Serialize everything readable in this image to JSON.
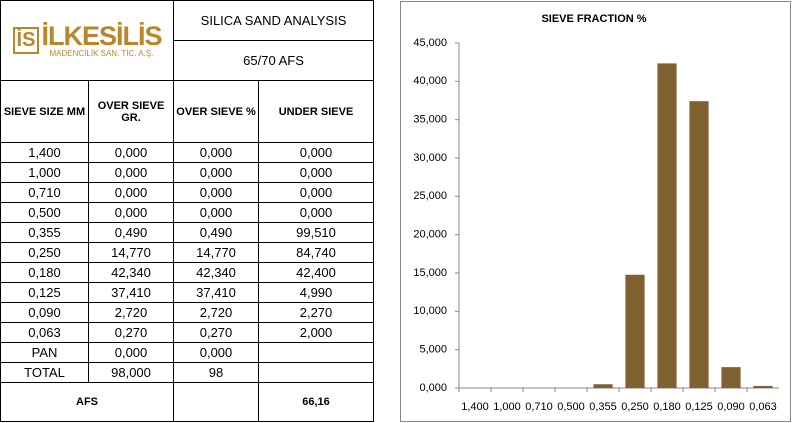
{
  "logo": {
    "icon": "İS",
    "name": "İLKESİLİS",
    "tagline": "MADENCİLİK SAN. TİC. A.Ş."
  },
  "table": {
    "title": "SILICA SAND ANALYSIS",
    "subtitle": "65/70 AFS",
    "header": [
      "SIEVE SIZE MM",
      "OVER SIEVE GR.",
      "OVER SIEVE %",
      "UNDER SIEVE"
    ],
    "rows": [
      [
        "1,400",
        "0,000",
        "0,000",
        "0,000"
      ],
      [
        "1,000",
        "0,000",
        "0,000",
        "0,000"
      ],
      [
        "0,710",
        "0,000",
        "0,000",
        "0,000"
      ],
      [
        "0,500",
        "0,000",
        "0,000",
        "0,000"
      ],
      [
        "0,355",
        "0,490",
        "0,490",
        "99,510"
      ],
      [
        "0,250",
        "14,770",
        "14,770",
        "84,740"
      ],
      [
        "0,180",
        "42,340",
        "42,340",
        "42,400"
      ],
      [
        "0,125",
        "37,410",
        "37,410",
        "4,990"
      ],
      [
        "0,090",
        "2,720",
        "2,720",
        "2,270"
      ],
      [
        "0,063",
        "0,270",
        "0,270",
        "2,000"
      ],
      [
        "PAN",
        "0,000",
        "0,000"
      ],
      [
        "TOTAL",
        "98,000",
        "98"
      ]
    ],
    "footer": {
      "label": "AFS",
      "value": "66,16"
    }
  },
  "chart_data": {
    "type": "bar",
    "title": "SIEVE FRACTION %",
    "categories": [
      "1,400",
      "1,000",
      "0,710",
      "0,500",
      "0,355",
      "0,250",
      "0,180",
      "0,125",
      "0,090",
      "0,063"
    ],
    "values": [
      0,
      0,
      0,
      0,
      0.49,
      14.77,
      42.34,
      37.41,
      2.72,
      0.27
    ],
    "color": "#7f6130",
    "ylim": [
      0,
      45
    ],
    "yticks": [
      {
        "value": 0,
        "label": "0,000"
      },
      {
        "value": 5,
        "label": "5,000"
      },
      {
        "value": 10,
        "label": "10,000"
      },
      {
        "value": 15,
        "label": "15,000"
      },
      {
        "value": 20,
        "label": "20,000"
      },
      {
        "value": 25,
        "label": "25,000"
      },
      {
        "value": 30,
        "label": "30,000"
      },
      {
        "value": 35,
        "label": "35,000"
      },
      {
        "value": 40,
        "label": "40,000"
      },
      {
        "value": 45,
        "label": "45,000"
      }
    ],
    "grid": false
  }
}
